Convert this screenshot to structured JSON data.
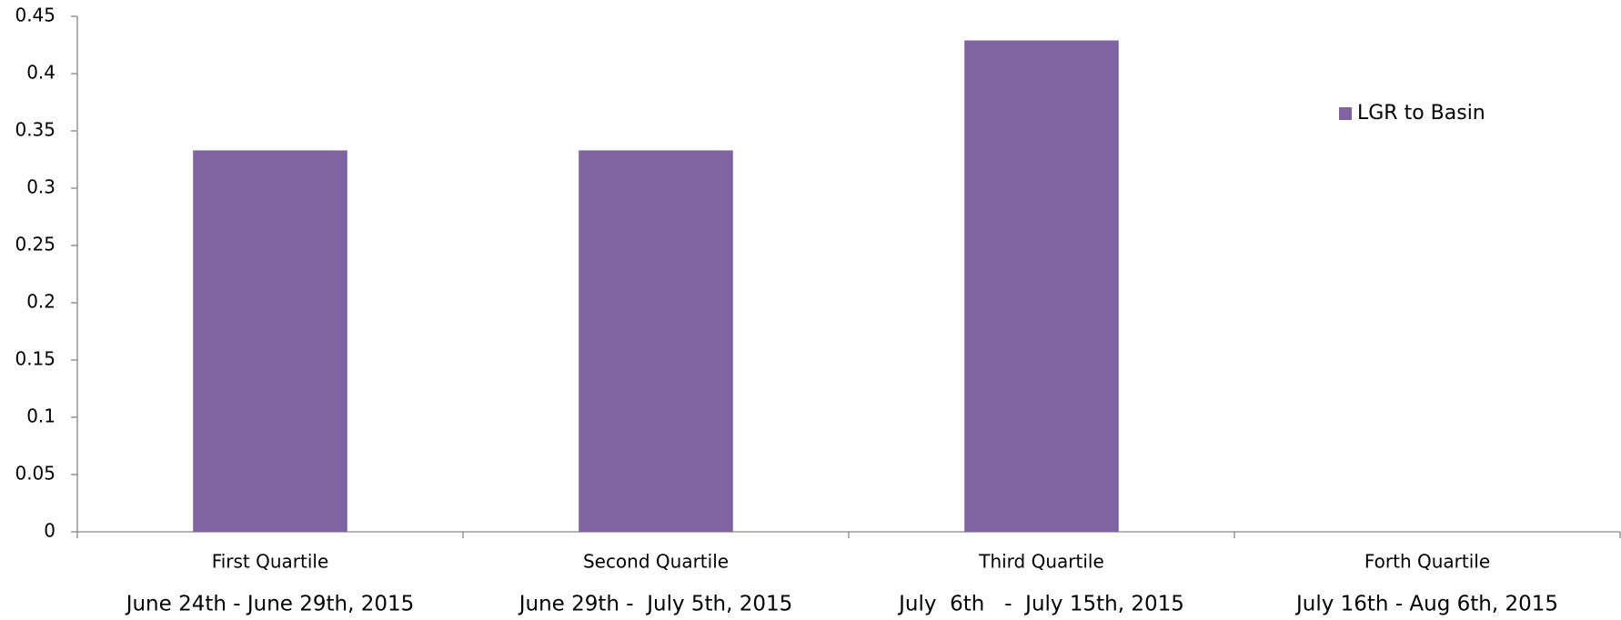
{
  "chart_data": {
    "type": "bar",
    "categories": [
      "First Quartile",
      "Second Quartile",
      "Third Quartile",
      "Forth Quartile"
    ],
    "date_ranges": [
      "June 24th - June 29th, 2015",
      "June 29th -  July 5th, 2015",
      "July  6th   -  July 15th, 2015",
      "July 16th - Aug 6th, 2015"
    ],
    "series": [
      {
        "name": "LGR to Basin",
        "color": "#8064a2",
        "values": [
          0.333,
          0.333,
          0.429,
          null
        ]
      }
    ],
    "ylim": [
      0,
      0.45
    ],
    "yticks": [
      0,
      0.05,
      0.1,
      0.15,
      0.2,
      0.25,
      0.3,
      0.35,
      0.4,
      0.45
    ],
    "grid": false,
    "legend": "right"
  }
}
